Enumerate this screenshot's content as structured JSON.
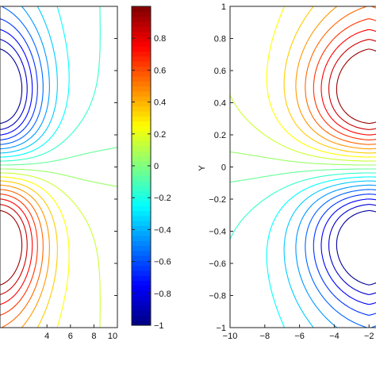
{
  "chart_data": [
    {
      "type": "contour",
      "panel": "left",
      "xlabel": "",
      "ylabel": "",
      "xlim": [
        0,
        10
      ],
      "xticks": [
        4,
        6,
        8,
        10
      ],
      "ylim": [
        -1,
        1
      ],
      "x_tick_labels": [
        "4",
        "6",
        "8",
        "10"
      ],
      "colormap": "jet",
      "value_range": [
        -1,
        1
      ],
      "extrema": [
        {
          "x": 0,
          "y": 0.45,
          "level": -1
        },
        {
          "x": 0,
          "y": -0.45,
          "level": 1
        }
      ]
    },
    {
      "type": "colorbar",
      "colormap": "jet",
      "range": [
        -1,
        1
      ],
      "ticks": [
        -1,
        -0.8,
        -0.6,
        -0.4,
        -0.2,
        0,
        0.2,
        0.4,
        0.6,
        0.8
      ],
      "tick_labels": [
        "−1",
        "−0.8",
        "−0.6",
        "−0.4",
        "−0.2",
        "0",
        "0.2",
        "0.4",
        "0.6",
        "0.8"
      ]
    },
    {
      "type": "contour",
      "panel": "right",
      "xlabel": "",
      "ylabel": "Y",
      "xlim": [
        -10,
        -1.6
      ],
      "ylim": [
        -1,
        1
      ],
      "xticks": [
        -10,
        -8,
        -6,
        -4,
        -2
      ],
      "yticks": [
        -1,
        -0.8,
        -0.6,
        -0.4,
        -0.2,
        0,
        0.2,
        0.4,
        0.6,
        0.8,
        1
      ],
      "x_tick_labels": [
        "−10",
        "−8",
        "−6",
        "−4",
        "−2"
      ],
      "y_tick_labels": [
        "−1",
        "−0.8",
        "−0.6",
        "−0.4",
        "−0.2",
        "0",
        "0.2",
        "0.4",
        "0.6",
        "0.8",
        "1"
      ],
      "colormap": "jet",
      "value_range": [
        -1,
        1
      ],
      "extrema": [
        {
          "x": 0,
          "y": 0.45,
          "level": 1
        },
        {
          "x": 0,
          "y": -0.45,
          "level": -1
        }
      ]
    }
  ]
}
